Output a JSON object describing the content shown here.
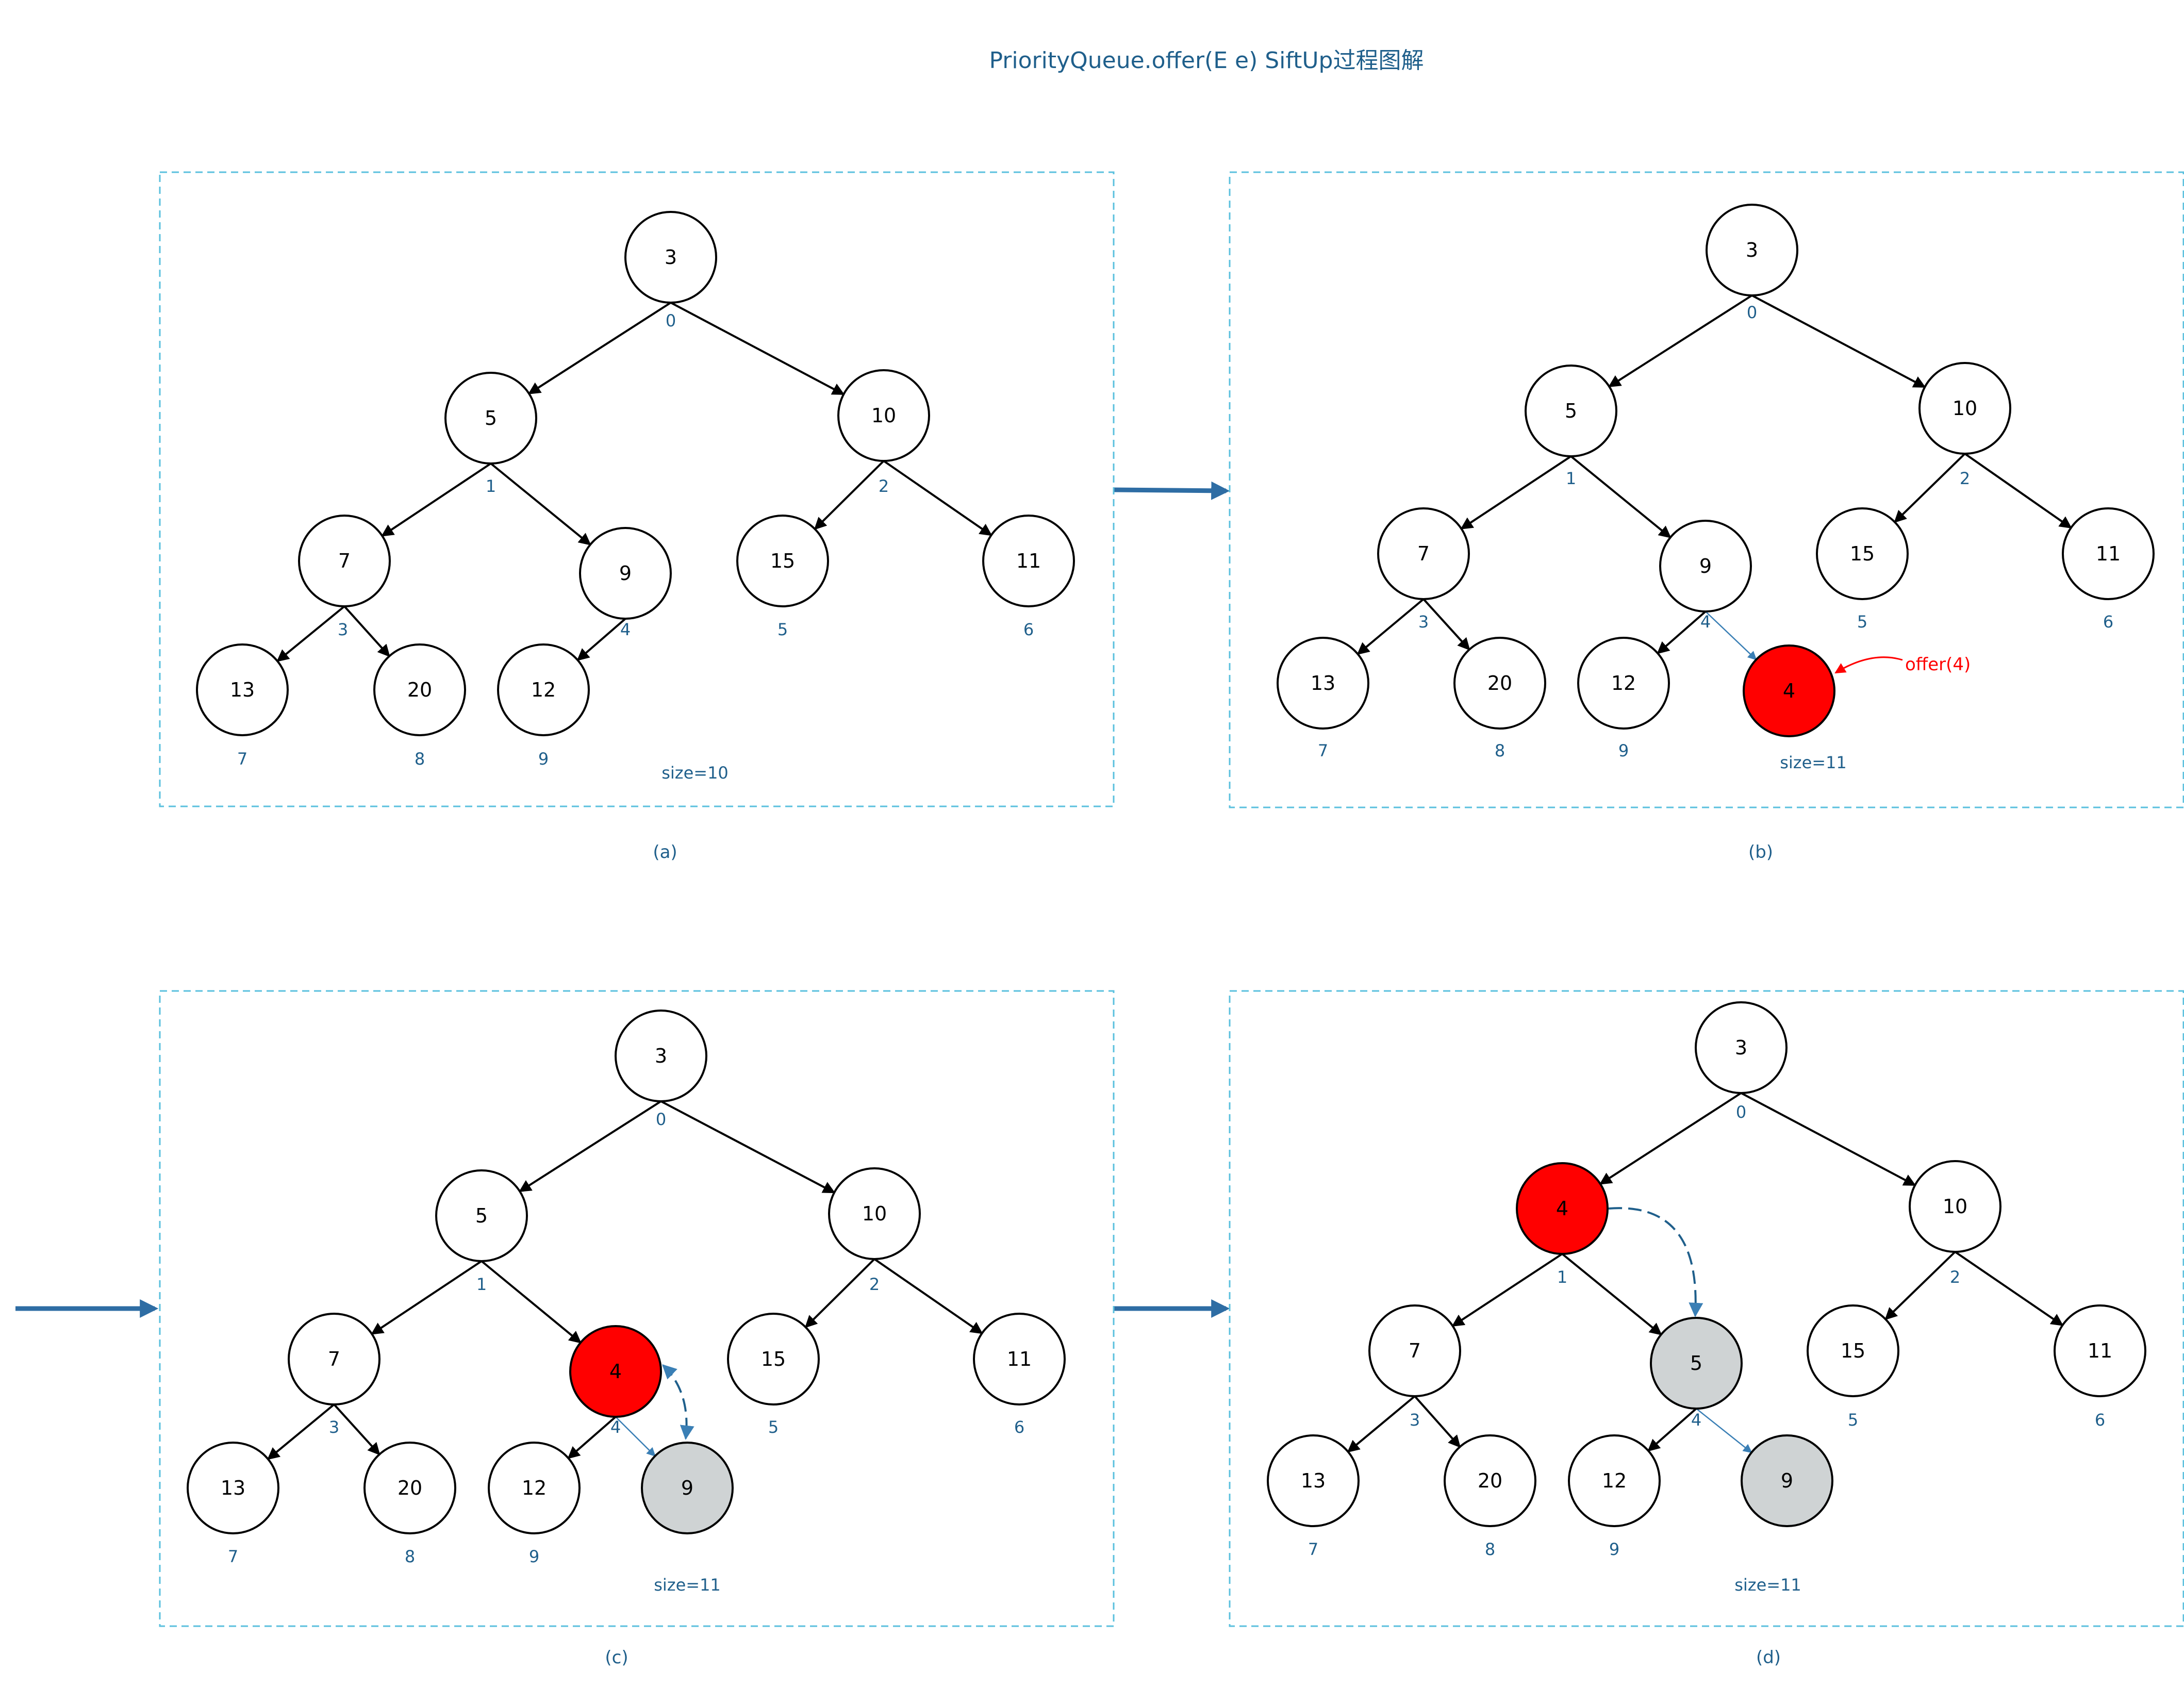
{
  "title": "PriorityQueue.offer(E e)  SiftUp过程图解",
  "colors": {
    "panel_border": "#5bc0de",
    "text_blue": "#1f5f8b",
    "new_node_fill": "#ff0000",
    "moved_node_fill": "#cfd3d4",
    "node_fill": "#ffffff",
    "annotation_red": "#ff0000",
    "flow_arrow": "#2e6da4"
  },
  "panels": [
    {
      "caption": "(a)",
      "size_label": "size=10",
      "nodes": [
        {
          "value": "3",
          "index": "0"
        },
        {
          "value": "5",
          "index": "1"
        },
        {
          "value": "10",
          "index": "2"
        },
        {
          "value": "7",
          "index": "3"
        },
        {
          "value": "9",
          "index": "4"
        },
        {
          "value": "15",
          "index": "5"
        },
        {
          "value": "11",
          "index": "6"
        },
        {
          "value": "13",
          "index": "7"
        },
        {
          "value": "20",
          "index": "8"
        },
        {
          "value": "12",
          "index": "9"
        }
      ]
    },
    {
      "caption": "(b)",
      "size_label": "size=11",
      "annotation": "offer(4)",
      "nodes": [
        {
          "value": "3",
          "index": "0"
        },
        {
          "value": "5",
          "index": "1"
        },
        {
          "value": "10",
          "index": "2"
        },
        {
          "value": "7",
          "index": "3"
        },
        {
          "value": "9",
          "index": "4"
        },
        {
          "value": "15",
          "index": "5"
        },
        {
          "value": "11",
          "index": "6"
        },
        {
          "value": "13",
          "index": "7"
        },
        {
          "value": "20",
          "index": "8"
        },
        {
          "value": "12",
          "index": "9"
        },
        {
          "value": "4",
          "index": "",
          "state": "new"
        }
      ]
    },
    {
      "caption": "(c)",
      "size_label": "size=11",
      "nodes": [
        {
          "value": "3",
          "index": "0"
        },
        {
          "value": "5",
          "index": "1"
        },
        {
          "value": "10",
          "index": "2"
        },
        {
          "value": "7",
          "index": "3"
        },
        {
          "value": "4",
          "index": "4",
          "state": "new"
        },
        {
          "value": "15",
          "index": "5"
        },
        {
          "value": "11",
          "index": "6"
        },
        {
          "value": "13",
          "index": "7"
        },
        {
          "value": "20",
          "index": "8"
        },
        {
          "value": "12",
          "index": "9"
        },
        {
          "value": "9",
          "index": "",
          "state": "moved"
        }
      ]
    },
    {
      "caption": "(d)",
      "size_label": "size=11",
      "nodes": [
        {
          "value": "3",
          "index": "0"
        },
        {
          "value": "4",
          "index": "1",
          "state": "new"
        },
        {
          "value": "10",
          "index": "2"
        },
        {
          "value": "7",
          "index": "3"
        },
        {
          "value": "5",
          "index": "4",
          "state": "moved"
        },
        {
          "value": "15",
          "index": "5"
        },
        {
          "value": "11",
          "index": "6"
        },
        {
          "value": "13",
          "index": "7"
        },
        {
          "value": "20",
          "index": "8"
        },
        {
          "value": "12",
          "index": "9"
        },
        {
          "value": "9",
          "index": "",
          "state": "moved"
        }
      ]
    }
  ]
}
